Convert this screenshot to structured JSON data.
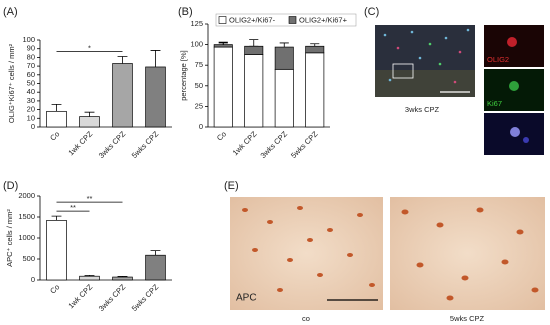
{
  "chart_data": [
    {
      "type": "bar",
      "panel": "(A)",
      "ylabel": "OLIG⁺Ki67⁺ cells / mm²",
      "categories": [
        "Co",
        "1wk CPZ",
        "3wks CPZ",
        "5wks CPZ"
      ],
      "values": [
        18,
        12,
        73,
        69
      ],
      "errors": [
        8,
        5,
        8,
        19
      ],
      "colors": [
        "#ffffff",
        "#d9d9d9",
        "#a6a6a6",
        "#808080"
      ],
      "ylim": [
        0,
        100
      ],
      "yticks": [
        0,
        10,
        20,
        30,
        40,
        50,
        60,
        70,
        80,
        90,
        100
      ],
      "significance": [
        {
          "from": 0,
          "to": 2,
          "label": "*"
        }
      ]
    },
    {
      "type": "stacked-bar",
      "panel": "(B)",
      "ylabel": "percentage [%]",
      "categories": [
        "Co",
        "1wk CPZ",
        "3wks CPZ",
        "5wks CPZ"
      ],
      "series": [
        {
          "name": "OLIG2+/Ki67-",
          "color": "#ffffff",
          "values": [
            97,
            88,
            70,
            90
          ],
          "errors": [
            5,
            10,
            5,
            6
          ]
        },
        {
          "name": "OLIG2+/Ki67+",
          "color": "#707070",
          "values": [
            3,
            10,
            27,
            8
          ],
          "errors": [
            3,
            8,
            5,
            3
          ]
        }
      ],
      "ylim": [
        0,
        125
      ],
      "yticks": [
        0,
        25,
        50,
        75,
        100,
        125
      ]
    },
    {
      "type": "bar",
      "panel": "(D)",
      "ylabel": "APC⁺ cells / mm²",
      "categories": [
        "Co",
        "1wk CPZ",
        "3wks CPZ",
        "5wks CPZ"
      ],
      "values": [
        1420,
        90,
        70,
        590
      ],
      "errors": [
        100,
        20,
        15,
        110
      ],
      "colors": [
        "#ffffff",
        "#d9d9d9",
        "#a6a6a6",
        "#808080"
      ],
      "ylim": [
        0,
        2000
      ],
      "yticks": [
        0,
        500,
        1000,
        1500,
        2000
      ],
      "significance": [
        {
          "from": 0,
          "to": 1,
          "label": "**"
        },
        {
          "from": 0,
          "to": 2,
          "label": "**"
        }
      ]
    }
  ],
  "panel_c": {
    "letter": "(C)",
    "caption": "3wks CPZ",
    "insets": [
      "OLIG2",
      "Ki67"
    ]
  },
  "panel_e": {
    "letter": "(E)",
    "stain": "APC",
    "captions": [
      "co",
      "5wks CPZ"
    ]
  }
}
